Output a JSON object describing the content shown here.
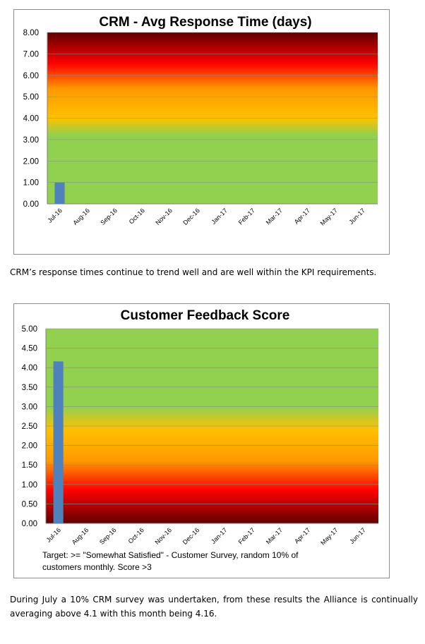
{
  "chart_data": [
    {
      "type": "bar",
      "title": "CRM - Avg Response Time (days)",
      "categories": [
        "Jul-16",
        "Aug-16",
        "Sep-16",
        "Oct-16",
        "Nov-16",
        "Dec-16",
        "Jan-17",
        "Feb-17",
        "Mar-17",
        "Apr-17",
        "May-17",
        "Jun-17"
      ],
      "values": [
        1.0,
        null,
        null,
        null,
        null,
        null,
        null,
        null,
        null,
        null,
        null,
        null
      ],
      "yticks": [
        "0.00",
        "1.00",
        "2.00",
        "3.00",
        "4.00",
        "5.00",
        "6.00",
        "7.00",
        "8.00"
      ],
      "ylim": [
        0,
        8
      ],
      "grid": true,
      "bar_color": "#4f81bd",
      "background": "green below 3, yellow-orange-red-dark red gradient above (higher is worse)",
      "colors": {
        "green": "#92d050",
        "yellow": "#ffc000",
        "orange": "#ff9900",
        "red": "#ff0000",
        "dark_red": "#600000"
      }
    },
    {
      "type": "bar",
      "title": "Customer Feedback Score",
      "categories": [
        "Jul-16",
        "Aug-16",
        "Sep-16",
        "Oct-16",
        "Nov-16",
        "Dec-16",
        "Jan-17",
        "Feb-17",
        "Mar-17",
        "Apr-17",
        "May-17",
        "Jun-17"
      ],
      "values": [
        4.16,
        null,
        null,
        null,
        null,
        null,
        null,
        null,
        null,
        null,
        null,
        null
      ],
      "yticks": [
        "0.00",
        "0.50",
        "1.00",
        "1.50",
        "2.00",
        "2.50",
        "3.00",
        "3.50",
        "4.00",
        "4.50",
        "5.00"
      ],
      "ylim": [
        0,
        5
      ],
      "grid": true,
      "bar_color": "#4f81bd",
      "background": "green above 3, yellow-orange-red-dark red gradient below (lower is worse)",
      "annotation_lines": [
        "Target: >= \"Somewhat Satisfied\" - Customer Survey, random 10% of",
        "customers monthly. Score >3"
      ],
      "colors": {
        "green": "#92d050",
        "yellow": "#ffc000",
        "orange": "#ff9900",
        "red": "#ff0000",
        "dark_red": "#600000"
      }
    }
  ],
  "paragraphs": {
    "crm_response": "CRM’s response times continue to trend well and are well within the KPI requirements.",
    "feedback": "During July a 10% CRM survey was undertaken, from these results the Alliance is continually averaging above 4.1 with this month being 4.16."
  }
}
